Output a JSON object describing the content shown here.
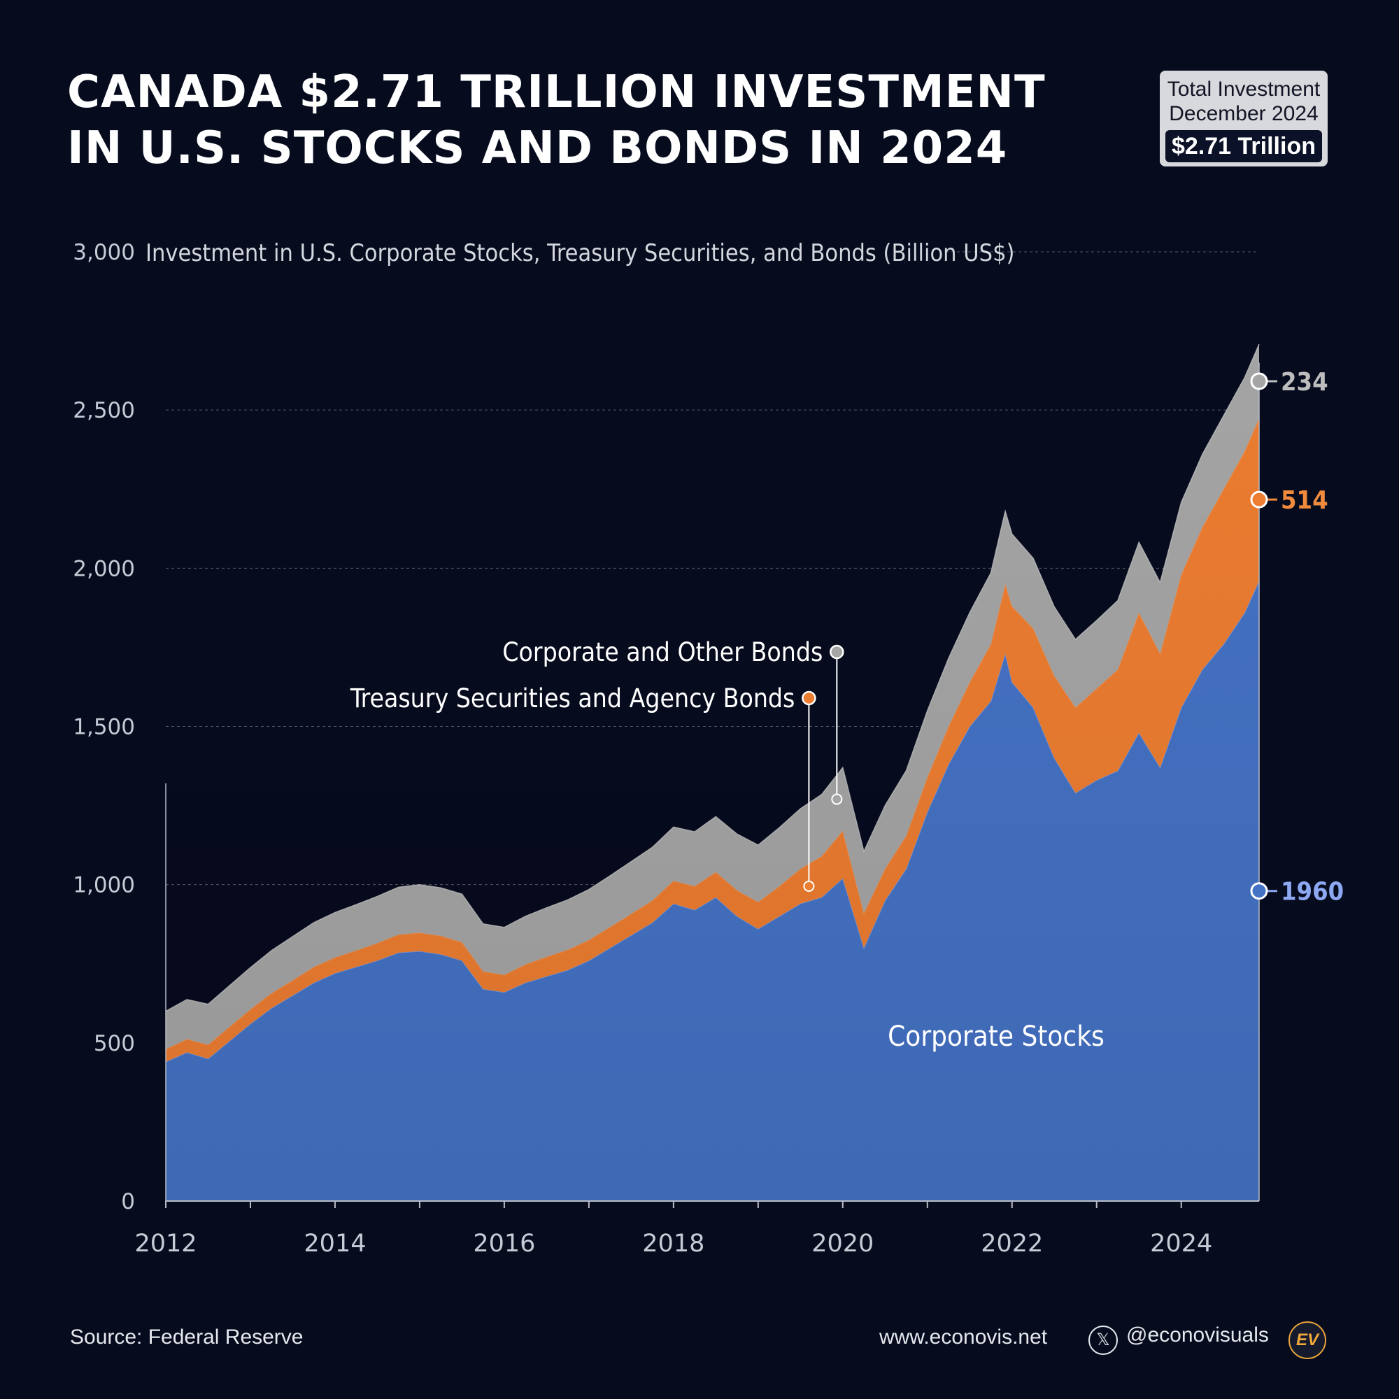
{
  "header": {
    "title_line1": "CANADA $2.71 TRILLION INVESTMENT",
    "title_line2": "IN U.S. STOCKS AND BONDS IN 2024"
  },
  "badge": {
    "label_line1": "Total Investment",
    "label_line2": "December 2024",
    "value": "$2.71 Trillion"
  },
  "footer": {
    "source": "Source: Federal Reserve",
    "website": "www.econovis.net",
    "x_icon": "𝕏",
    "handle": "@econovisuals",
    "logo": "EV"
  },
  "colors": {
    "background": "#060b1e",
    "stocks": "#4472c4",
    "treasury": "#ed7d31",
    "corporate_bonds": "#a5a5a5"
  },
  "chart_data": {
    "type": "area",
    "stacked": true,
    "subtitle": "Investment in U.S. Corporate Stocks, Treasury Securities, and Bonds (Billion US$)",
    "ylim": [
      0,
      3000
    ],
    "yticks": [
      0,
      500,
      1000,
      1500,
      2000,
      2500,
      3000
    ],
    "ytick_labels": [
      "0",
      "500",
      "1,000",
      "1,500",
      "2,000",
      "2,500",
      "3,000"
    ],
    "xlim": [
      2012,
      2024.92
    ],
    "xticks": [
      2012,
      2014,
      2016,
      2018,
      2020,
      2022,
      2024
    ],
    "xtick_labels": [
      "2012",
      "2014",
      "2016",
      "2018",
      "2020",
      "2022",
      "2024"
    ],
    "series": [
      {
        "name": "Corporate Stocks",
        "color": "#4472c4",
        "end_label": "1960",
        "points": [
          [
            2012.0,
            440
          ],
          [
            2012.25,
            470
          ],
          [
            2012.5,
            450
          ],
          [
            2012.75,
            505
          ],
          [
            2013.0,
            560
          ],
          [
            2013.25,
            610
          ],
          [
            2013.5,
            650
          ],
          [
            2013.75,
            690
          ],
          [
            2014.0,
            720
          ],
          [
            2014.25,
            740
          ],
          [
            2014.5,
            760
          ],
          [
            2014.75,
            785
          ],
          [
            2015.0,
            790
          ],
          [
            2015.25,
            780
          ],
          [
            2015.5,
            760
          ],
          [
            2015.75,
            670
          ],
          [
            2016.0,
            660
          ],
          [
            2016.25,
            690
          ],
          [
            2016.5,
            710
          ],
          [
            2016.75,
            730
          ],
          [
            2017.0,
            760
          ],
          [
            2017.25,
            800
          ],
          [
            2017.5,
            840
          ],
          [
            2017.75,
            880
          ],
          [
            2018.0,
            940
          ],
          [
            2018.25,
            920
          ],
          [
            2018.5,
            960
          ],
          [
            2018.75,
            900
          ],
          [
            2019.0,
            860
          ],
          [
            2019.25,
            900
          ],
          [
            2019.5,
            940
          ],
          [
            2019.75,
            960
          ],
          [
            2020.0,
            1020
          ],
          [
            2020.25,
            800
          ],
          [
            2020.5,
            950
          ],
          [
            2020.75,
            1050
          ],
          [
            2021.0,
            1230
          ],
          [
            2021.25,
            1380
          ],
          [
            2021.5,
            1500
          ],
          [
            2021.75,
            1580
          ],
          [
            2021.92,
            1730
          ],
          [
            2022.0,
            1640
          ],
          [
            2022.25,
            1560
          ],
          [
            2022.5,
            1400
          ],
          [
            2022.75,
            1290
          ],
          [
            2023.0,
            1330
          ],
          [
            2023.25,
            1360
          ],
          [
            2023.5,
            1480
          ],
          [
            2023.75,
            1370
          ],
          [
            2024.0,
            1560
          ],
          [
            2024.25,
            1680
          ],
          [
            2024.5,
            1760
          ],
          [
            2024.75,
            1860
          ],
          [
            2024.92,
            1960
          ]
        ]
      },
      {
        "name": "Treasury Securities and Agency Bonds",
        "color": "#ed7d31",
        "end_label": "514",
        "points": [
          [
            2012.0,
            40
          ],
          [
            2012.25,
            42
          ],
          [
            2012.5,
            44
          ],
          [
            2012.75,
            45
          ],
          [
            2013.0,
            46
          ],
          [
            2013.25,
            47
          ],
          [
            2013.5,
            48
          ],
          [
            2013.75,
            50
          ],
          [
            2014.0,
            50
          ],
          [
            2014.25,
            52
          ],
          [
            2014.5,
            55
          ],
          [
            2014.75,
            57
          ],
          [
            2015.0,
            58
          ],
          [
            2015.25,
            58
          ],
          [
            2015.5,
            58
          ],
          [
            2015.75,
            56
          ],
          [
            2016.0,
            55
          ],
          [
            2016.25,
            58
          ],
          [
            2016.5,
            62
          ],
          [
            2016.75,
            64
          ],
          [
            2017.0,
            65
          ],
          [
            2017.25,
            66
          ],
          [
            2017.5,
            68
          ],
          [
            2017.75,
            70
          ],
          [
            2018.0,
            72
          ],
          [
            2018.25,
            75
          ],
          [
            2018.5,
            80
          ],
          [
            2018.75,
            82
          ],
          [
            2019.0,
            85
          ],
          [
            2019.25,
            95
          ],
          [
            2019.5,
            110
          ],
          [
            2019.75,
            130
          ],
          [
            2020.0,
            150
          ],
          [
            2020.25,
            110
          ],
          [
            2020.5,
            100
          ],
          [
            2020.75,
            105
          ],
          [
            2021.0,
            110
          ],
          [
            2021.25,
            120
          ],
          [
            2021.5,
            140
          ],
          [
            2021.75,
            180
          ],
          [
            2021.92,
            220
          ],
          [
            2022.0,
            240
          ],
          [
            2022.25,
            250
          ],
          [
            2022.5,
            260
          ],
          [
            2022.75,
            270
          ],
          [
            2023.0,
            290
          ],
          [
            2023.25,
            320
          ],
          [
            2023.5,
            380
          ],
          [
            2023.75,
            360
          ],
          [
            2024.0,
            420
          ],
          [
            2024.25,
            450
          ],
          [
            2024.5,
            490
          ],
          [
            2024.75,
            510
          ],
          [
            2024.92,
            514
          ]
        ]
      },
      {
        "name": "Corporate and Other Bonds",
        "color": "#a5a5a5",
        "end_label": "234",
        "points": [
          [
            2012.0,
            120
          ],
          [
            2012.25,
            125
          ],
          [
            2012.5,
            128
          ],
          [
            2012.75,
            130
          ],
          [
            2013.0,
            132
          ],
          [
            2013.25,
            135
          ],
          [
            2013.5,
            138
          ],
          [
            2013.75,
            140
          ],
          [
            2014.0,
            142
          ],
          [
            2014.25,
            145
          ],
          [
            2014.5,
            148
          ],
          [
            2014.75,
            150
          ],
          [
            2015.0,
            152
          ],
          [
            2015.25,
            152
          ],
          [
            2015.5,
            152
          ],
          [
            2015.75,
            150
          ],
          [
            2016.0,
            150
          ],
          [
            2016.25,
            152
          ],
          [
            2016.5,
            155
          ],
          [
            2016.75,
            158
          ],
          [
            2017.0,
            160
          ],
          [
            2017.25,
            162
          ],
          [
            2017.5,
            165
          ],
          [
            2017.75,
            168
          ],
          [
            2018.0,
            170
          ],
          [
            2018.25,
            172
          ],
          [
            2018.5,
            175
          ],
          [
            2018.75,
            178
          ],
          [
            2019.0,
            180
          ],
          [
            2019.25,
            185
          ],
          [
            2019.5,
            190
          ],
          [
            2019.75,
            195
          ],
          [
            2020.0,
            200
          ],
          [
            2020.25,
            195
          ],
          [
            2020.5,
            200
          ],
          [
            2020.75,
            205
          ],
          [
            2021.0,
            210
          ],
          [
            2021.25,
            215
          ],
          [
            2021.5,
            220
          ],
          [
            2021.75,
            225
          ],
          [
            2021.92,
            230
          ],
          [
            2022.0,
            228
          ],
          [
            2022.25,
            222
          ],
          [
            2022.5,
            218
          ],
          [
            2022.75,
            215
          ],
          [
            2023.0,
            215
          ],
          [
            2023.25,
            218
          ],
          [
            2023.5,
            222
          ],
          [
            2023.75,
            225
          ],
          [
            2024.0,
            228
          ],
          [
            2024.25,
            230
          ],
          [
            2024.5,
            232
          ],
          [
            2024.75,
            233
          ],
          [
            2024.92,
            234
          ]
        ]
      }
    ],
    "annotations": {
      "corporate_bonds_label": "Corporate and Other Bonds",
      "treasury_label": "Treasury Securities and Agency Bonds",
      "stocks_label": "Corporate Stocks"
    }
  }
}
